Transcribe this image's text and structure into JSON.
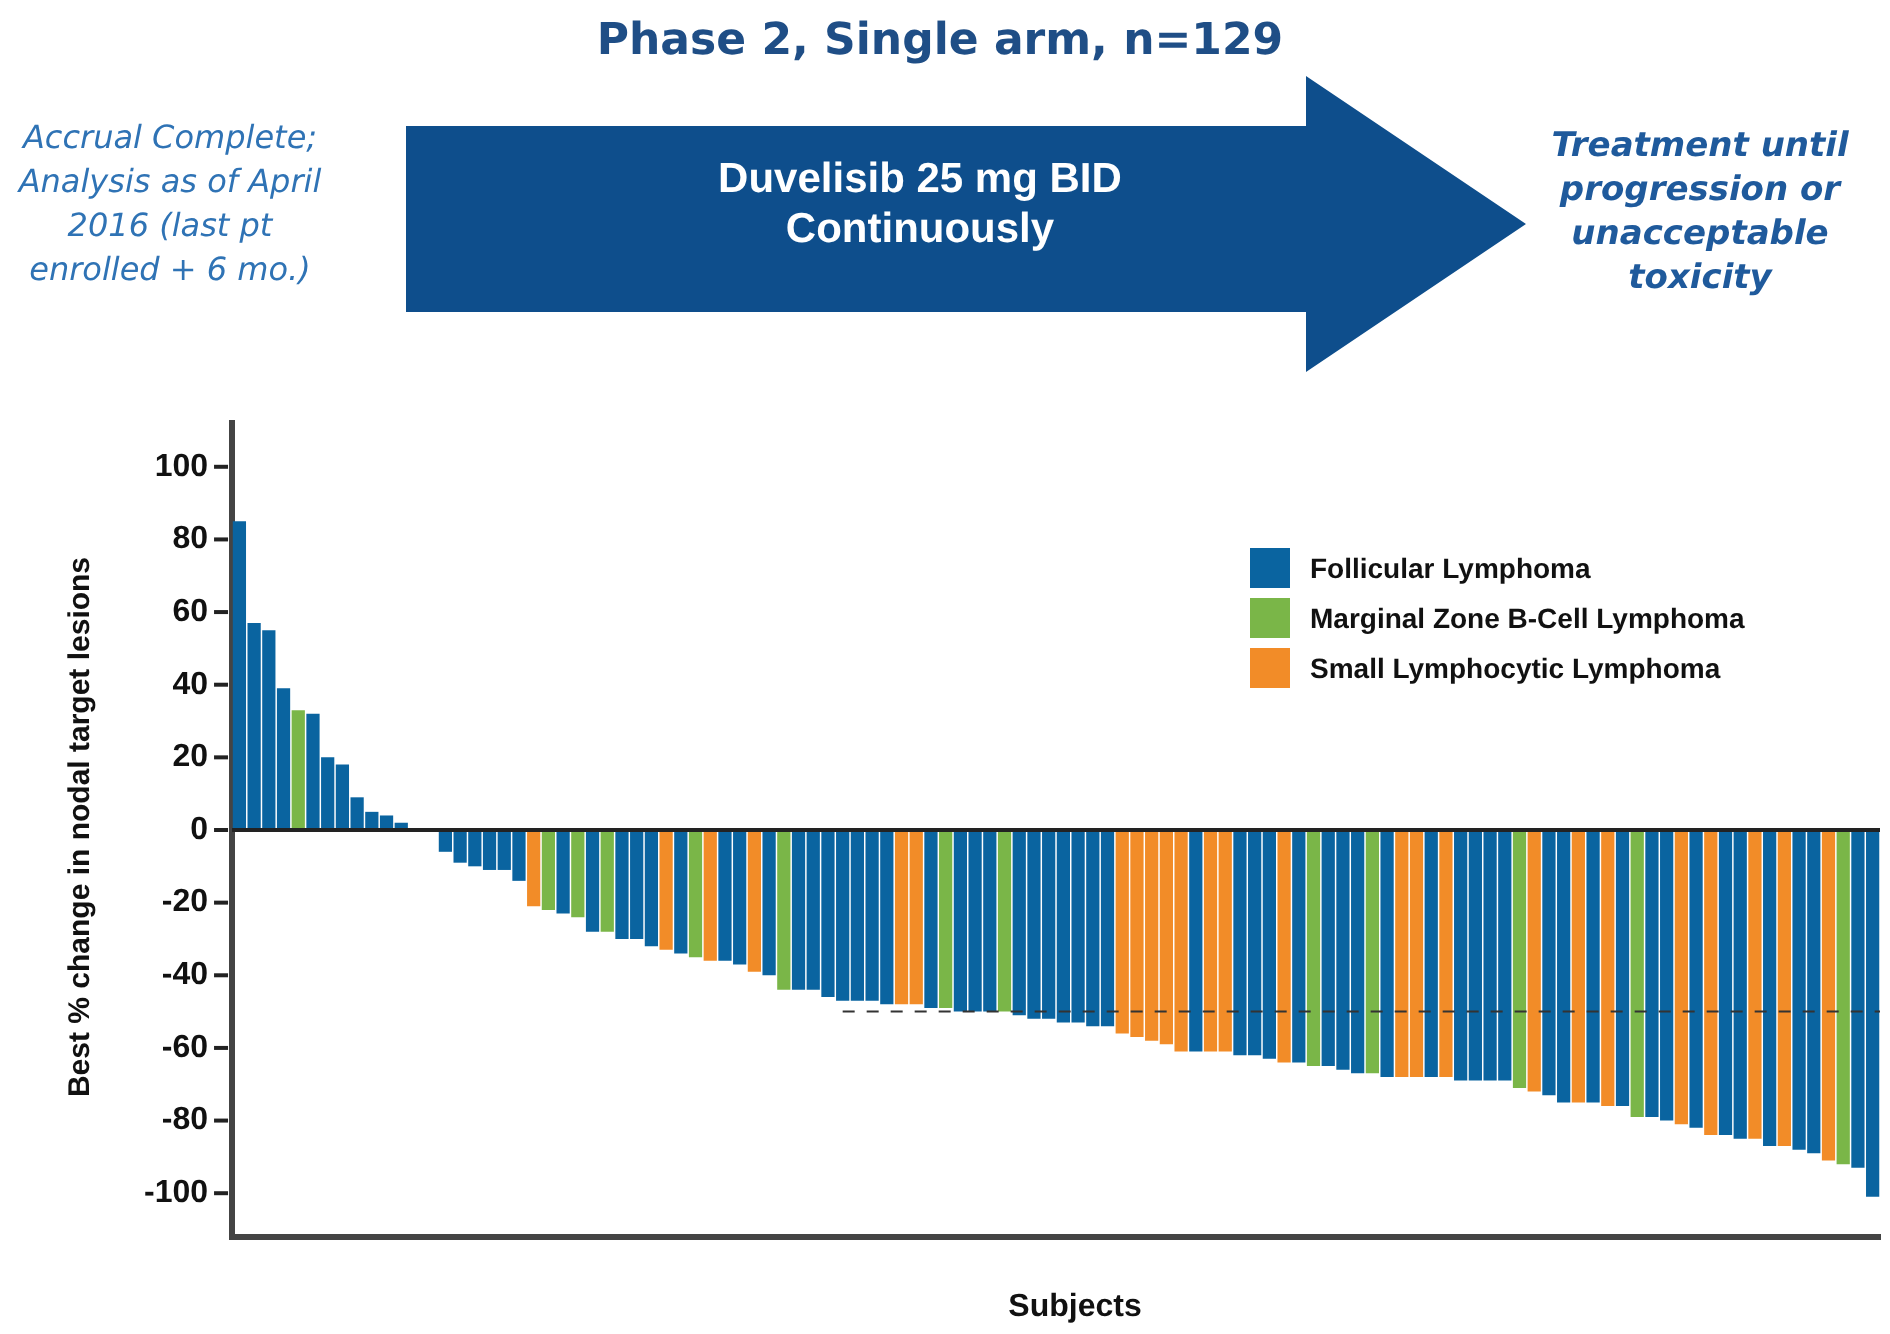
{
  "chart_data": {
    "type": "bar",
    "title": "Phase 2, Single arm, n=129",
    "annotations": [
      "Accrual Complete; Analysis as of April 2016 (last pt enrolled + 6 mo.)",
      "Duvelisib 25 mg BID Continuously",
      "Treatment until progression or unacceptable toxicity"
    ],
    "xlabel": "Subjects",
    "ylabel": "Best % change in nodal target lesions",
    "categories": [
      null,
      null,
      null,
      null,
      null,
      null,
      null,
      null,
      null,
      null,
      null,
      null,
      null,
      null,
      null,
      null,
      null,
      null,
      null,
      null,
      null,
      null,
      null,
      null,
      null,
      null,
      null,
      null,
      null,
      null,
      null,
      null,
      null,
      null,
      null,
      null,
      null,
      null,
      null,
      null,
      null,
      null,
      null,
      null,
      null,
      null,
      null,
      null,
      null,
      null,
      null,
      null,
      null,
      null,
      null,
      null,
      null,
      null,
      null,
      null,
      null,
      null,
      null,
      null,
      null,
      null,
      null,
      null,
      null,
      null,
      null,
      null,
      null,
      null,
      null,
      null,
      null,
      null,
      null,
      null,
      null,
      null,
      null,
      null,
      null,
      null,
      null,
      null,
      null,
      null,
      null,
      null,
      null,
      null,
      null,
      null,
      null,
      null,
      null,
      null,
      null,
      null,
      null,
      null,
      null,
      null,
      null,
      null,
      null,
      null,
      null,
      null
    ],
    "series": [
      {
        "name": "Follicular Lymphoma",
        "color": "#0a64a0",
        "values": [
          85,
          57,
          55,
          39,
          null,
          32,
          20,
          18,
          9,
          5,
          4,
          2,
          0,
          0,
          -6,
          -9,
          -10,
          -11,
          -11,
          -14,
          null,
          null,
          -23,
          null,
          -28,
          null,
          -30,
          -30,
          -32,
          null,
          -34,
          null,
          null,
          -36,
          -37,
          null,
          -40,
          null,
          -44,
          -44,
          -46,
          -47,
          -47,
          -47,
          -48,
          null,
          null,
          -49,
          null,
          -50,
          -50,
          -50,
          null,
          -51,
          -52,
          -52,
          -53,
          -53,
          -54,
          -54,
          null,
          null,
          null,
          null,
          null,
          -61,
          null,
          null,
          -62,
          -62,
          -63,
          null,
          -64,
          null,
          -65,
          -66,
          -67,
          null,
          -68,
          null,
          null,
          -68,
          null,
          -69,
          -69,
          -69,
          -69,
          null,
          null,
          -73,
          -75,
          null,
          -75,
          null,
          -76,
          null,
          -79,
          -80,
          null,
          -82,
          null,
          -84,
          -85,
          null,
          -87,
          null,
          -88,
          -89,
          null,
          null,
          -93,
          -101
        ]
      },
      {
        "name": "Marginal Zone B-Cell Lymphoma",
        "color": "#7ab648",
        "values": [
          null,
          null,
          null,
          null,
          33,
          null,
          null,
          null,
          null,
          null,
          null,
          null,
          null,
          null,
          null,
          null,
          null,
          null,
          null,
          null,
          null,
          -22,
          null,
          -24,
          null,
          -28,
          null,
          null,
          null,
          null,
          null,
          -35,
          null,
          null,
          null,
          null,
          null,
          -44,
          null,
          null,
          null,
          null,
          null,
          null,
          null,
          null,
          null,
          null,
          -49,
          null,
          null,
          null,
          -50,
          null,
          null,
          null,
          null,
          null,
          null,
          null,
          null,
          null,
          null,
          null,
          null,
          null,
          null,
          null,
          null,
          null,
          null,
          null,
          null,
          -65,
          null,
          null,
          null,
          -67,
          null,
          null,
          null,
          null,
          null,
          null,
          null,
          null,
          null,
          -71,
          null,
          null,
          null,
          null,
          null,
          null,
          null,
          -79,
          null,
          null,
          null,
          null,
          null,
          null,
          null,
          null,
          null,
          null,
          null,
          null,
          null,
          -92,
          null,
          null
        ]
      },
      {
        "name": "Small Lymphocytic Lymphoma",
        "color": "#f28c28",
        "values": [
          null,
          null,
          null,
          null,
          null,
          null,
          null,
          null,
          null,
          null,
          null,
          null,
          null,
          null,
          null,
          null,
          null,
          null,
          null,
          null,
          -21,
          null,
          null,
          null,
          null,
          null,
          null,
          null,
          null,
          -33,
          null,
          null,
          -36,
          null,
          null,
          -39,
          null,
          null,
          null,
          null,
          null,
          null,
          null,
          null,
          null,
          -48,
          -48,
          null,
          null,
          null,
          null,
          null,
          null,
          null,
          null,
          null,
          null,
          null,
          null,
          null,
          -56,
          -57,
          -58,
          -59,
          -61,
          null,
          -61,
          -61,
          null,
          null,
          null,
          -64,
          null,
          null,
          null,
          null,
          null,
          null,
          null,
          -68,
          -68,
          null,
          -68,
          null,
          null,
          null,
          null,
          null,
          -72,
          null,
          null,
          -75,
          null,
          -76,
          null,
          null,
          null,
          null,
          -81,
          null,
          -84,
          null,
          null,
          -85,
          null,
          -87,
          null,
          null,
          -91,
          null,
          null,
          null
        ]
      }
    ],
    "ylim": [
      -112,
      112
    ],
    "yticks": [
      -100,
      -80,
      -60,
      -40,
      -20,
      0,
      20,
      40,
      60,
      80,
      100
    ],
    "ref_lines": [
      {
        "axis": "y",
        "value": -50,
        "line_style": "dashed",
        "color": "#333333"
      }
    ],
    "legend": "top right"
  }
}
